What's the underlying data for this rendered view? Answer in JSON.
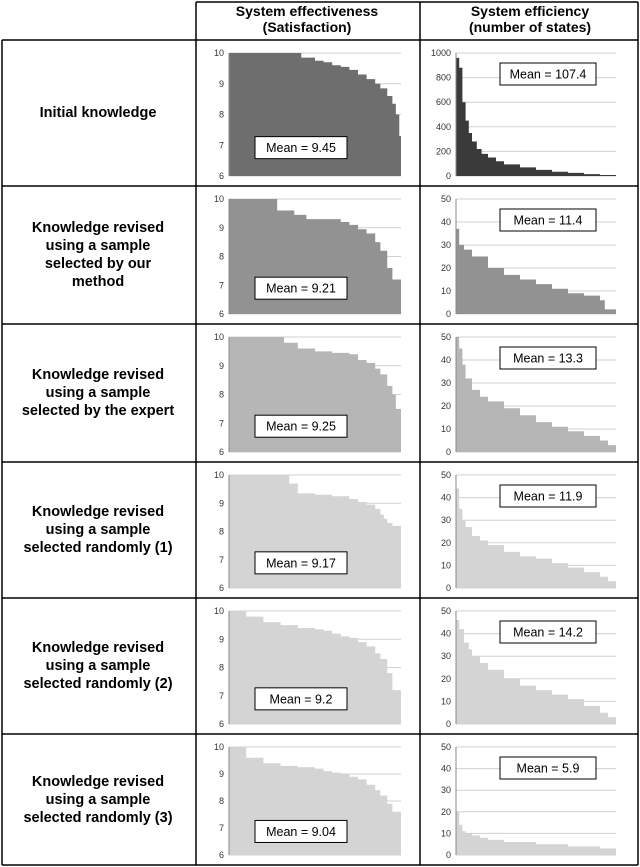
{
  "headers": {
    "col1_line1": "System effectiveness",
    "col1_line2": "(Satisfaction)",
    "col2_line1": "System efficiency",
    "col2_line2": "(number of states)"
  },
  "rows": [
    {
      "label_lines": [
        "Initial knowledge"
      ]
    },
    {
      "label_lines": [
        "Knowledge revised",
        "using a sample",
        "selected by our",
        "method"
      ]
    },
    {
      "label_lines": [
        "Knowledge revised",
        "using a sample",
        "selected by the expert"
      ]
    },
    {
      "label_lines": [
        "Knowledge revised",
        "using a sample",
        "selected randomly (1)"
      ]
    },
    {
      "label_lines": [
        "Knowledge revised",
        "using a sample",
        "selected randomly (2)"
      ]
    },
    {
      "label_lines": [
        "Knowledge revised",
        "using a sample",
        "selected randomly (3)"
      ]
    }
  ],
  "chart_data": [
    {
      "type": "area",
      "panel": "effectiveness",
      "row": 0,
      "color": "#6e6e6e",
      "ylim": [
        6,
        10
      ],
      "yticks": [
        "6",
        "7",
        "8",
        "9",
        "10"
      ],
      "annotation": "Mean = 9.45",
      "x": [
        0,
        0.1,
        0.15,
        0.3,
        0.42,
        0.5,
        0.55,
        0.6,
        0.65,
        0.7,
        0.75,
        0.8,
        0.85,
        0.88,
        0.92,
        0.95,
        0.97,
        0.99,
        1.0
      ],
      "values": [
        10,
        10,
        10,
        10,
        9.85,
        9.75,
        9.7,
        9.6,
        9.55,
        9.45,
        9.3,
        9.15,
        9.0,
        8.85,
        8.6,
        8.35,
        8.0,
        7.3,
        6.1
      ]
    },
    {
      "type": "area",
      "panel": "efficiency",
      "row": 0,
      "color": "#3a3a3a",
      "ylim": [
        0,
        1000
      ],
      "yticks": [
        "0",
        "200",
        "400",
        "600",
        "800",
        "1000"
      ],
      "annotation": "Mean = 107.4",
      "x": [
        0,
        0.02,
        0.04,
        0.06,
        0.08,
        0.1,
        0.13,
        0.16,
        0.2,
        0.25,
        0.3,
        0.4,
        0.5,
        0.6,
        0.7,
        0.8,
        0.9,
        1.0
      ],
      "values": [
        960,
        880,
        600,
        450,
        350,
        280,
        220,
        180,
        150,
        120,
        95,
        70,
        50,
        35,
        25,
        15,
        8,
        3
      ]
    },
    {
      "type": "area",
      "panel": "effectiveness",
      "row": 1,
      "color": "#929292",
      "ylim": [
        6,
        10
      ],
      "yticks": [
        "6",
        "7",
        "8",
        "9",
        "10"
      ],
      "annotation": "Mean = 9.21",
      "x": [
        0,
        0.25,
        0.28,
        0.38,
        0.45,
        0.5,
        0.6,
        0.65,
        0.7,
        0.75,
        0.8,
        0.85,
        0.88,
        0.92,
        0.95,
        1.0
      ],
      "values": [
        10,
        10,
        9.6,
        9.45,
        9.3,
        9.3,
        9.3,
        9.2,
        9.1,
        8.95,
        8.8,
        8.5,
        8.2,
        7.6,
        7.2,
        6.9
      ]
    },
    {
      "type": "area",
      "panel": "efficiency",
      "row": 1,
      "color": "#929292",
      "ylim": [
        0,
        50
      ],
      "yticks": [
        "0",
        "10",
        "20",
        "30",
        "40",
        "50"
      ],
      "annotation": "Mean = 11.4",
      "x": [
        0,
        0.02,
        0.05,
        0.1,
        0.2,
        0.3,
        0.4,
        0.5,
        0.6,
        0.7,
        0.8,
        0.9,
        0.93,
        1.0
      ],
      "values": [
        37,
        30,
        28,
        25,
        20,
        17,
        15,
        13,
        11,
        9,
        8,
        6,
        2,
        2
      ]
    },
    {
      "type": "area",
      "panel": "effectiveness",
      "row": 2,
      "color": "#b6b6b6",
      "ylim": [
        6,
        10
      ],
      "yticks": [
        "6",
        "7",
        "8",
        "9",
        "10"
      ],
      "annotation": "Mean = 9.25",
      "x": [
        0,
        0.25,
        0.32,
        0.4,
        0.5,
        0.6,
        0.7,
        0.75,
        0.8,
        0.85,
        0.88,
        0.92,
        0.95,
        0.97,
        1.0
      ],
      "values": [
        10,
        10,
        9.8,
        9.6,
        9.5,
        9.45,
        9.4,
        9.2,
        9.1,
        8.9,
        8.7,
        8.3,
        8.0,
        7.5,
        6.8
      ]
    },
    {
      "type": "area",
      "panel": "efficiency",
      "row": 2,
      "color": "#b6b6b6",
      "ylim": [
        0,
        50
      ],
      "yticks": [
        "0",
        "10",
        "20",
        "30",
        "40",
        "50"
      ],
      "annotation": "Mean = 13.3",
      "x": [
        0,
        0.02,
        0.04,
        0.06,
        0.1,
        0.15,
        0.2,
        0.3,
        0.4,
        0.5,
        0.6,
        0.7,
        0.8,
        0.9,
        0.95,
        1.0
      ],
      "values": [
        50,
        45,
        38,
        32,
        27,
        24,
        22,
        19,
        16,
        13,
        11,
        9,
        7,
        5,
        3,
        2
      ]
    },
    {
      "type": "area",
      "panel": "effectiveness",
      "row": 3,
      "color": "#d4d4d4",
      "ylim": [
        6,
        10
      ],
      "yticks": [
        "6",
        "7",
        "8",
        "9",
        "10"
      ],
      "annotation": "Mean = 9.17",
      "x": [
        0,
        0.28,
        0.35,
        0.4,
        0.5,
        0.6,
        0.7,
        0.75,
        0.8,
        0.85,
        0.88,
        0.9,
        0.92,
        0.95,
        1.0
      ],
      "values": [
        10,
        10,
        9.7,
        9.35,
        9.3,
        9.25,
        9.15,
        9.05,
        8.95,
        8.8,
        8.6,
        8.45,
        8.3,
        8.2,
        6.8
      ]
    },
    {
      "type": "area",
      "panel": "efficiency",
      "row": 3,
      "color": "#d4d4d4",
      "ylim": [
        0,
        50
      ],
      "yticks": [
        "0",
        "10",
        "20",
        "30",
        "40",
        "50"
      ],
      "annotation": "Mean = 11.9",
      "x": [
        0,
        0.02,
        0.04,
        0.06,
        0.1,
        0.15,
        0.2,
        0.3,
        0.4,
        0.5,
        0.6,
        0.7,
        0.8,
        0.9,
        0.95,
        1.0
      ],
      "values": [
        44,
        35,
        30,
        27,
        23,
        21,
        19,
        16,
        14,
        13,
        11,
        9,
        7,
        5,
        3,
        2
      ]
    },
    {
      "type": "area",
      "panel": "effectiveness",
      "row": 4,
      "color": "#d4d4d4",
      "ylim": [
        6,
        10
      ],
      "yticks": [
        "6",
        "7",
        "8",
        "9",
        "10"
      ],
      "annotation": "Mean = 9.2",
      "x": [
        0,
        0.06,
        0.1,
        0.2,
        0.3,
        0.4,
        0.5,
        0.55,
        0.6,
        0.65,
        0.7,
        0.75,
        0.8,
        0.85,
        0.88,
        0.92,
        0.95,
        1.0
      ],
      "values": [
        10,
        10,
        9.8,
        9.6,
        9.5,
        9.4,
        9.35,
        9.3,
        9.2,
        9.1,
        9.05,
        8.9,
        8.75,
        8.5,
        8.3,
        7.8,
        7.2,
        6.9
      ]
    },
    {
      "type": "area",
      "panel": "efficiency",
      "row": 4,
      "color": "#d4d4d4",
      "ylim": [
        0,
        50
      ],
      "yticks": [
        "0",
        "10",
        "20",
        "30",
        "40",
        "50"
      ],
      "annotation": "Mean = 14.2",
      "x": [
        0,
        0.02,
        0.05,
        0.08,
        0.1,
        0.15,
        0.2,
        0.3,
        0.4,
        0.5,
        0.6,
        0.7,
        0.8,
        0.9,
        0.95,
        1.0
      ],
      "values": [
        46,
        42,
        36,
        33,
        30,
        27,
        24,
        20,
        17,
        15,
        13,
        11,
        8,
        5,
        3,
        2
      ]
    },
    {
      "type": "area",
      "panel": "effectiveness",
      "row": 5,
      "color": "#d4d4d4",
      "ylim": [
        6,
        10
      ],
      "yticks": [
        "6",
        "7",
        "8",
        "9",
        "10"
      ],
      "annotation": "Mean = 9.04",
      "x": [
        0,
        0.1,
        0.2,
        0.3,
        0.4,
        0.5,
        0.55,
        0.6,
        0.65,
        0.7,
        0.75,
        0.8,
        0.85,
        0.88,
        0.92,
        0.95,
        1.0
      ],
      "values": [
        10,
        9.6,
        9.4,
        9.3,
        9.25,
        9.2,
        9.1,
        9.05,
        9.0,
        8.9,
        8.8,
        8.6,
        8.4,
        8.2,
        7.9,
        7.6,
        7.0
      ]
    },
    {
      "type": "area",
      "panel": "efficiency",
      "row": 5,
      "color": "#d4d4d4",
      "ylim": [
        0,
        50
      ],
      "yticks": [
        "0",
        "10",
        "20",
        "30",
        "40",
        "50"
      ],
      "annotation": "Mean = 5.9",
      "x": [
        0,
        0.02,
        0.04,
        0.06,
        0.1,
        0.15,
        0.2,
        0.3,
        0.4,
        0.5,
        0.6,
        0.7,
        0.8,
        0.9,
        1.0
      ],
      "values": [
        20,
        14,
        11,
        10,
        9,
        8,
        7,
        6,
        6,
        5,
        5,
        4,
        4,
        3,
        3
      ]
    }
  ]
}
